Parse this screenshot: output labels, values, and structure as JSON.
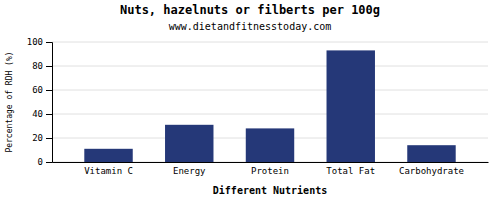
{
  "chart_data": {
    "type": "bar",
    "title": "Nuts, hazelnuts or filberts per 100g",
    "subtitle": "www.dietandfitnesstoday.com",
    "categories": [
      "Vitamin C",
      "Energy",
      "Protein",
      "Total Fat",
      "Carbohydrate"
    ],
    "values": [
      11,
      31,
      28,
      93,
      14
    ],
    "color": "#253878",
    "xlabel": "Different Nutrients",
    "ylabel": "Percentage of RDH (%)",
    "ylim": [
      0,
      100
    ],
    "yticks": [
      0,
      20,
      40,
      60,
      80,
      100
    ],
    "grid": true
  }
}
